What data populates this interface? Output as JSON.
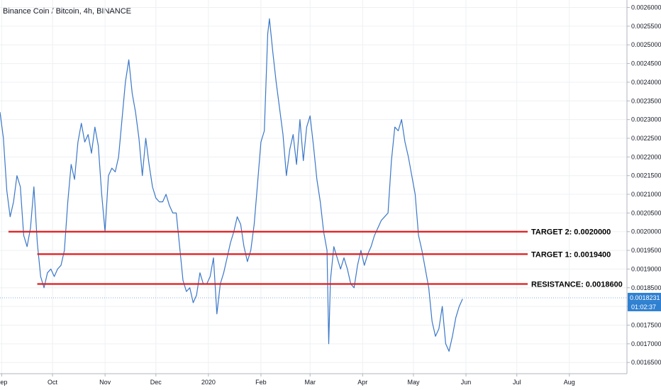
{
  "chart_data": {
    "type": "line",
    "title": "Binance Coin / Bitcoin, 4h, BINANCE",
    "ylim": [
      0.00162,
      0.00262
    ],
    "yticks": [
      0.00165,
      0.0017,
      0.00175,
      0.0018,
      0.00185,
      0.0019,
      0.00195,
      0.002,
      0.00205,
      0.0021,
      0.00215,
      0.0022,
      0.00225,
      0.0023,
      0.00235,
      0.0024,
      0.00245,
      0.0025,
      0.00255,
      0.0026
    ],
    "yticks_text": [
      "0.0016500",
      "0.0017000",
      "0.0017500",
      "0.0018000",
      "0.0018500",
      "0.0019000",
      "0.0019500",
      "0.0020000",
      "0.0020500",
      "0.0021000",
      "0.0021500",
      "0.0022000",
      "0.0022500",
      "0.0023000",
      "0.0023500",
      "0.0024000",
      "0.0024500",
      "0.0025000",
      "0.0025500",
      "0.0026000"
    ],
    "xlim": [
      "2019-08-31",
      "2020-09-04"
    ],
    "xticks": [
      {
        "date": "2019-09-01",
        "label": "Sep"
      },
      {
        "date": "2019-10-01",
        "label": "Oct"
      },
      {
        "date": "2019-11-01",
        "label": "Nov"
      },
      {
        "date": "2019-12-01",
        "label": "Dec"
      },
      {
        "date": "2020-01-01",
        "label": "2020"
      },
      {
        "date": "2020-02-01",
        "label": "Feb"
      },
      {
        "date": "2020-03-01",
        "label": "Mar"
      },
      {
        "date": "2020-04-01",
        "label": "Apr"
      },
      {
        "date": "2020-05-01",
        "label": "May"
      },
      {
        "date": "2020-06-01",
        "label": "Jun"
      },
      {
        "date": "2020-07-01",
        "label": "Jul"
      },
      {
        "date": "2020-08-01",
        "label": "Aug"
      }
    ],
    "series": [
      {
        "color": "#3a77c8",
        "points": [
          [
            "2019-08-31",
            0.00232
          ],
          [
            "2019-09-02",
            0.00225
          ],
          [
            "2019-09-04",
            0.00211
          ],
          [
            "2019-09-06",
            0.00204
          ],
          [
            "2019-09-08",
            0.00208
          ],
          [
            "2019-09-10",
            0.00215
          ],
          [
            "2019-09-12",
            0.00212
          ],
          [
            "2019-09-14",
            0.00199
          ],
          [
            "2019-09-16",
            0.00196
          ],
          [
            "2019-09-18",
            0.00201
          ],
          [
            "2019-09-20",
            0.00212
          ],
          [
            "2019-09-22",
            0.00197
          ],
          [
            "2019-09-24",
            0.00188
          ],
          [
            "2019-09-26",
            0.00185
          ],
          [
            "2019-09-28",
            0.00189
          ],
          [
            "2019-09-30",
            0.0019
          ],
          [
            "2019-10-02",
            0.00188
          ],
          [
            "2019-10-04",
            0.0019
          ],
          [
            "2019-10-06",
            0.00191
          ],
          [
            "2019-10-08",
            0.00195
          ],
          [
            "2019-10-10",
            0.00208
          ],
          [
            "2019-10-12",
            0.00218
          ],
          [
            "2019-10-14",
            0.00214
          ],
          [
            "2019-10-16",
            0.00224
          ],
          [
            "2019-10-18",
            0.00229
          ],
          [
            "2019-10-20",
            0.00224
          ],
          [
            "2019-10-22",
            0.00226
          ],
          [
            "2019-10-24",
            0.00221
          ],
          [
            "2019-10-26",
            0.00228
          ],
          [
            "2019-10-28",
            0.00223
          ],
          [
            "2019-10-30",
            0.0021
          ],
          [
            "2019-11-01",
            0.002
          ],
          [
            "2019-11-03",
            0.00215
          ],
          [
            "2019-11-05",
            0.00217
          ],
          [
            "2019-11-07",
            0.00216
          ],
          [
            "2019-11-09",
            0.0022
          ],
          [
            "2019-11-11",
            0.0023
          ],
          [
            "2019-11-13",
            0.0024
          ],
          [
            "2019-11-15",
            0.00246
          ],
          [
            "2019-11-17",
            0.00237
          ],
          [
            "2019-11-19",
            0.00232
          ],
          [
            "2019-11-21",
            0.00225
          ],
          [
            "2019-11-23",
            0.00215
          ],
          [
            "2019-11-25",
            0.00225
          ],
          [
            "2019-11-27",
            0.00218
          ],
          [
            "2019-11-29",
            0.00212
          ],
          [
            "2019-12-01",
            0.00209
          ],
          [
            "2019-12-03",
            0.00208
          ],
          [
            "2019-12-05",
            0.00208
          ],
          [
            "2019-12-07",
            0.0021
          ],
          [
            "2019-12-09",
            0.00207
          ],
          [
            "2019-12-11",
            0.00205
          ],
          [
            "2019-12-13",
            0.00205
          ],
          [
            "2019-12-15",
            0.00196
          ],
          [
            "2019-12-17",
            0.00187
          ],
          [
            "2019-12-19",
            0.00184
          ],
          [
            "2019-12-21",
            0.00185
          ],
          [
            "2019-12-23",
            0.00181
          ],
          [
            "2019-12-25",
            0.00183
          ],
          [
            "2019-12-27",
            0.00189
          ],
          [
            "2019-12-29",
            0.00186
          ],
          [
            "2019-12-31",
            0.00186
          ],
          [
            "2020-01-02",
            0.00188
          ],
          [
            "2020-01-04",
            0.00193
          ],
          [
            "2020-01-06",
            0.00178
          ],
          [
            "2020-01-08",
            0.00186
          ],
          [
            "2020-01-10",
            0.00189
          ],
          [
            "2020-01-12",
            0.00193
          ],
          [
            "2020-01-14",
            0.00197
          ],
          [
            "2020-01-16",
            0.002
          ],
          [
            "2020-01-18",
            0.00204
          ],
          [
            "2020-01-20",
            0.00202
          ],
          [
            "2020-01-22",
            0.00196
          ],
          [
            "2020-01-24",
            0.00192
          ],
          [
            "2020-01-26",
            0.00195
          ],
          [
            "2020-01-28",
            0.00202
          ],
          [
            "2020-01-30",
            0.00213
          ],
          [
            "2020-02-01",
            0.00224
          ],
          [
            "2020-02-03",
            0.00227
          ],
          [
            "2020-02-05",
            0.00253
          ],
          [
            "2020-02-06",
            0.00257
          ],
          [
            "2020-02-08",
            0.00248
          ],
          [
            "2020-02-10",
            0.0024
          ],
          [
            "2020-02-12",
            0.00233
          ],
          [
            "2020-02-14",
            0.00226
          ],
          [
            "2020-02-16",
            0.00215
          ],
          [
            "2020-02-18",
            0.00222
          ],
          [
            "2020-02-20",
            0.00226
          ],
          [
            "2020-02-22",
            0.00218
          ],
          [
            "2020-02-24",
            0.0023
          ],
          [
            "2020-02-26",
            0.00219
          ],
          [
            "2020-02-28",
            0.00228
          ],
          [
            "2020-03-01",
            0.00231
          ],
          [
            "2020-03-03",
            0.00223
          ],
          [
            "2020-03-05",
            0.00214
          ],
          [
            "2020-03-07",
            0.00208
          ],
          [
            "2020-03-09",
            0.002
          ],
          [
            "2020-03-11",
            0.00195
          ],
          [
            "2020-03-12",
            0.0017
          ],
          [
            "2020-03-13",
            0.00187
          ],
          [
            "2020-03-15",
            0.00196
          ],
          [
            "2020-03-17",
            0.00193
          ],
          [
            "2020-03-19",
            0.0019
          ],
          [
            "2020-03-21",
            0.00193
          ],
          [
            "2020-03-23",
            0.0019
          ],
          [
            "2020-03-25",
            0.00186
          ],
          [
            "2020-03-27",
            0.00185
          ],
          [
            "2020-03-29",
            0.00191
          ],
          [
            "2020-03-31",
            0.00195
          ],
          [
            "2020-04-02",
            0.00191
          ],
          [
            "2020-04-04",
            0.00194
          ],
          [
            "2020-04-06",
            0.00196
          ],
          [
            "2020-04-08",
            0.00199
          ],
          [
            "2020-04-10",
            0.00201
          ],
          [
            "2020-04-12",
            0.00203
          ],
          [
            "2020-04-14",
            0.00204
          ],
          [
            "2020-04-16",
            0.00205
          ],
          [
            "2020-04-18",
            0.00219
          ],
          [
            "2020-04-20",
            0.00228
          ],
          [
            "2020-04-22",
            0.00227
          ],
          [
            "2020-04-24",
            0.0023
          ],
          [
            "2020-04-26",
            0.00224
          ],
          [
            "2020-04-28",
            0.0022
          ],
          [
            "2020-04-30",
            0.00215
          ],
          [
            "2020-05-02",
            0.0021
          ],
          [
            "2020-05-04",
            0.00199
          ],
          [
            "2020-05-06",
            0.00195
          ],
          [
            "2020-05-08",
            0.0019
          ],
          [
            "2020-05-10",
            0.00185
          ],
          [
            "2020-05-12",
            0.00176
          ],
          [
            "2020-05-14",
            0.00172
          ],
          [
            "2020-05-16",
            0.00174
          ],
          [
            "2020-05-18",
            0.0018
          ],
          [
            "2020-05-20",
            0.0017
          ],
          [
            "2020-05-22",
            0.00168
          ],
          [
            "2020-05-24",
            0.00172
          ],
          [
            "2020-05-26",
            0.00177
          ],
          [
            "2020-05-28",
            0.0018
          ],
          [
            "2020-05-30",
            0.00182
          ]
        ]
      }
    ],
    "horizontal_lines": [
      {
        "label": "TARGET 2: 0.0020000",
        "value": 0.002,
        "color": "#e0191b",
        "start": "2019-09-05"
      },
      {
        "label": "TARGET 1: 0.0019400",
        "value": 0.00194,
        "color": "#e0191b",
        "start": "2019-09-22"
      },
      {
        "label": "RESISTANCE: 0.0018600",
        "value": 0.00186,
        "color": "#e0191b",
        "start": "2019-09-22"
      }
    ],
    "last_price": {
      "value": 0.0018231,
      "text": "0.0018231",
      "countdown": "01:02:37",
      "color": "#2f80d1"
    },
    "grid": true
  }
}
